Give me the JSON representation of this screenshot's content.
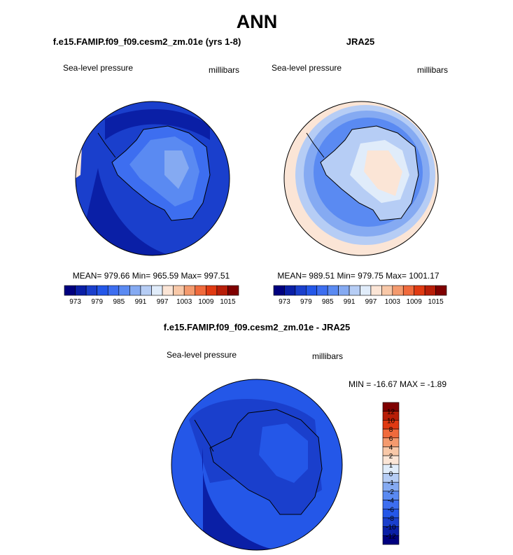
{
  "title": "ANN",
  "panels": [
    {
      "title": "f.e15.FAMIP.f09_f09.cesm2_zm.01e (yrs 1-8)",
      "variable": "Sea-level pressure",
      "units": "millibars",
      "stats": "MEAN= 979.66  Min= 965.59  Max= 997.51",
      "colorbar": {
        "colors": [
          "#00007f",
          "#0a1fa6",
          "#1a3fcc",
          "#2457e8",
          "#3d6ef0",
          "#5a8af2",
          "#85aaf2",
          "#b6cdf5",
          "#e0ecfa",
          "#fbe5d6",
          "#f8c8a8",
          "#f49a6e",
          "#f06a3c",
          "#e03a12",
          "#b81e08",
          "#7f0000"
        ],
        "labels": [
          973,
          979,
          985,
          991,
          997,
          1003,
          1009,
          1015
        ]
      }
    },
    {
      "title": "JRA25",
      "variable": "Sea-level pressure",
      "units": "millibars",
      "stats": "MEAN= 989.51  Min= 979.75  Max= 1001.17",
      "colorbar": {
        "colors": [
          "#00007f",
          "#0a1fa6",
          "#1a3fcc",
          "#2457e8",
          "#3d6ef0",
          "#5a8af2",
          "#85aaf2",
          "#b6cdf5",
          "#e0ecfa",
          "#fbe5d6",
          "#f8c8a8",
          "#f49a6e",
          "#f06a3c",
          "#e03a12",
          "#b81e08",
          "#7f0000"
        ],
        "labels": [
          973,
          979,
          985,
          991,
          997,
          1003,
          1009,
          1015
        ]
      }
    },
    {
      "title": "f.e15.FAMIP.f09_f09.cesm2_zm.01e - JRA25",
      "variable": "Sea-level pressure",
      "units": "millibars",
      "stats": "MIN = -16.67 MAX =  -1.89",
      "colorbar": {
        "colors": [
          "#7f0000",
          "#b81e08",
          "#e03a12",
          "#f06a3c",
          "#f49a6e",
          "#f8c8a8",
          "#fbe5d6",
          "#e0ecfa",
          "#b6cdf5",
          "#85aaf2",
          "#5a8af2",
          "#3d6ef0",
          "#2457e8",
          "#1a3fcc",
          "#0a1fa6",
          "#00007f"
        ],
        "labels": [
          12,
          10,
          8,
          6,
          4,
          2,
          1,
          0,
          -1,
          -2,
          -4,
          -6,
          -8,
          -10,
          -12
        ]
      }
    }
  ]
}
